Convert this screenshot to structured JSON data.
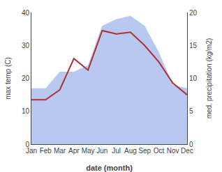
{
  "chart_data": {
    "type": "line",
    "categories": [
      "Jan",
      "Feb",
      "Mar",
      "Apr",
      "May",
      "Jun",
      "Jul",
      "Aug",
      "Sep",
      "Oct",
      "Nov",
      "Dec"
    ],
    "series": [
      {
        "type": "area",
        "axis": "y2",
        "color": "#b8c8f0",
        "values": [
          8.5,
          8.5,
          11.0,
          11.0,
          12.0,
          18.0,
          19.0,
          19.5,
          18.0,
          14.0,
          9.0,
          8.5
        ]
      },
      {
        "type": "line",
        "axis": "y",
        "color": "#b03030",
        "values": [
          13.5,
          13.5,
          16.5,
          26.0,
          22.5,
          34.5,
          33.5,
          34.0,
          30.0,
          25.0,
          18.5,
          15.0
        ]
      }
    ],
    "xlabel": "date (month)",
    "ylabel": "max temp (C)",
    "y2label": "med. precipitation (kg/m2)",
    "ylim": [
      0,
      40
    ],
    "yticks": [
      0,
      10,
      20,
      30,
      40
    ],
    "y2lim": [
      0,
      20
    ],
    "y2ticks": [
      0,
      5,
      10,
      15,
      20
    ],
    "grid": false
  }
}
